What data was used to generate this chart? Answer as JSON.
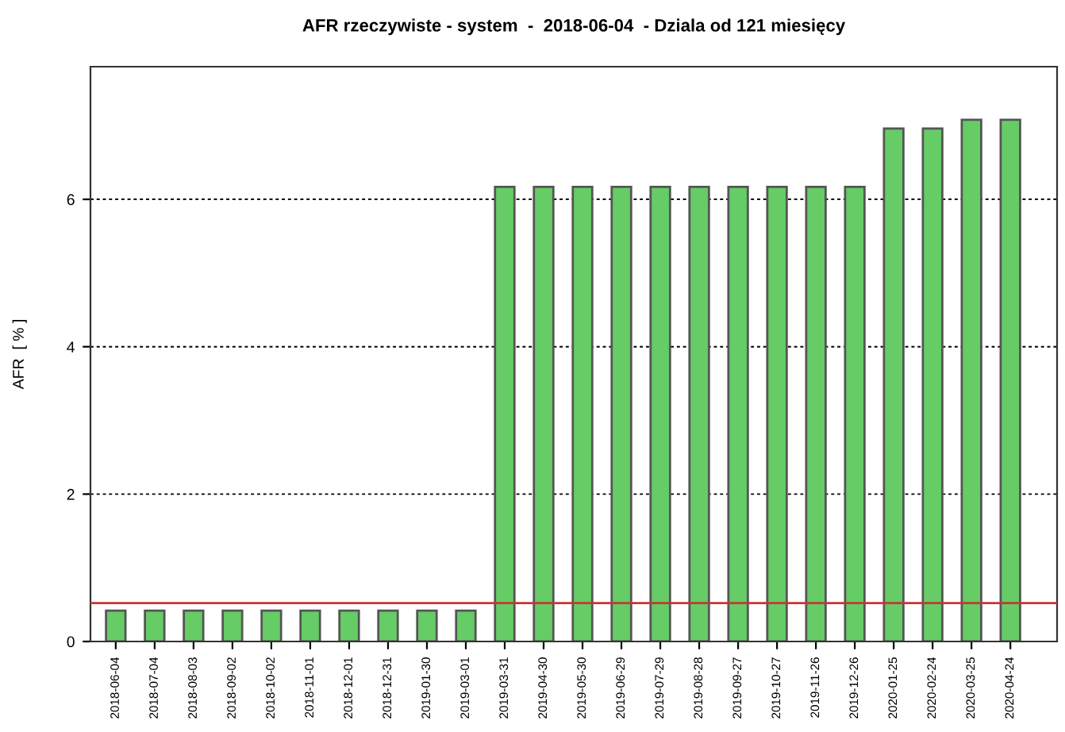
{
  "chart_data": {
    "type": "bar",
    "title": "AFR rzeczywiste - system  -  2018-06-04  - Dziala od 121 miesięcy",
    "ylabel": "AFR  [ % ]",
    "categories": [
      "2018-06-04",
      "2018-07-04",
      "2018-08-03",
      "2018-09-02",
      "2018-10-02",
      "2018-11-01",
      "2018-12-01",
      "2018-12-31",
      "2019-01-30",
      "2019-03-01",
      "2019-03-31",
      "2019-04-30",
      "2019-05-30",
      "2019-06-29",
      "2019-07-29",
      "2019-08-28",
      "2019-09-27",
      "2019-10-27",
      "2019-11-26",
      "2019-12-26",
      "2020-01-25",
      "2020-02-24",
      "2020-03-25",
      "2020-04-24"
    ],
    "values": [
      0.42,
      0.42,
      0.42,
      0.42,
      0.42,
      0.42,
      0.42,
      0.42,
      0.42,
      0.42,
      6.17,
      6.17,
      6.17,
      6.17,
      6.17,
      6.17,
      6.17,
      6.17,
      6.17,
      6.17,
      6.96,
      6.96,
      7.08,
      7.08
    ],
    "color": "#66cc66",
    "ylim": [
      0,
      7.8
    ],
    "yticks": [
      0,
      2,
      4,
      6
    ],
    "grid": "y",
    "ref_lines": [
      {
        "axis": "y",
        "value": 0.52,
        "color": "#cc3333"
      }
    ]
  }
}
